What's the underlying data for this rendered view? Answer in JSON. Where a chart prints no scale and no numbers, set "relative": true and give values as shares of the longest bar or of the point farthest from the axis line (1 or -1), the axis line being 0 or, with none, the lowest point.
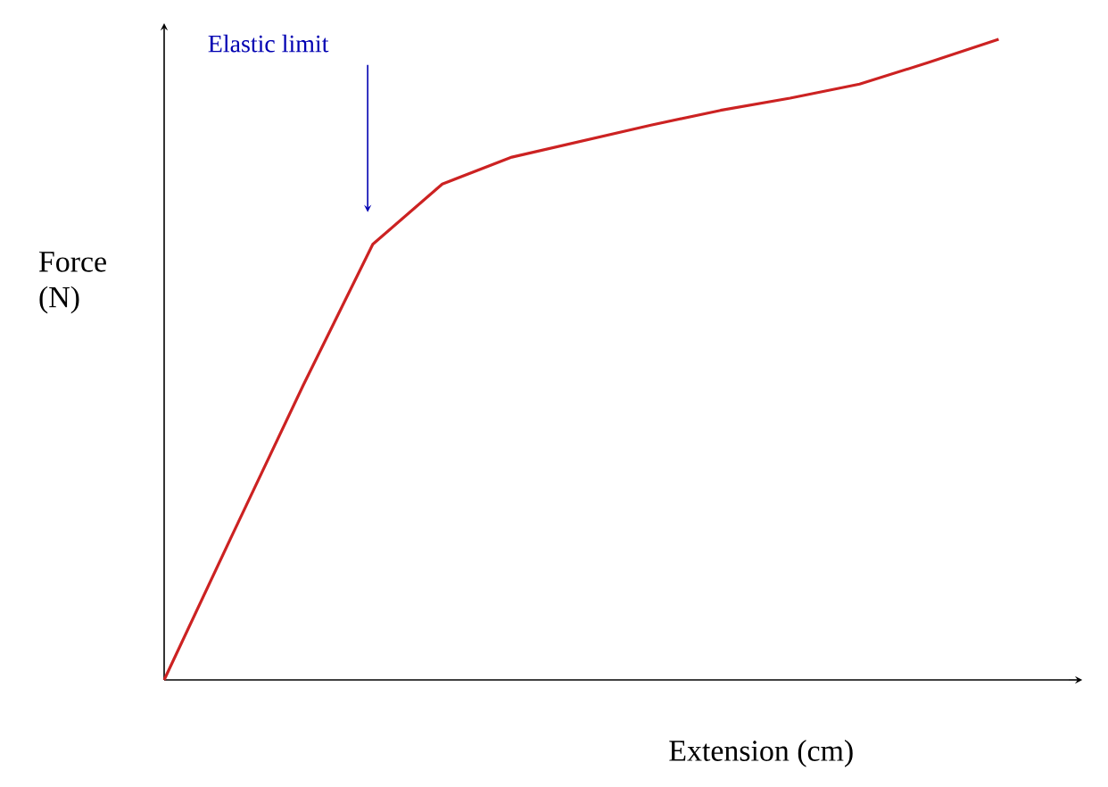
{
  "chart_data": {
    "type": "line",
    "relative": true,
    "tick_labels": false,
    "xlabel": "Extension (cm)",
    "ylabel": "Force (N)",
    "color": "#cc2222",
    "categories": [
      null,
      null,
      null,
      null,
      null,
      null,
      null,
      null,
      null,
      null,
      null,
      null,
      null
    ],
    "values": [
      0,
      0.231,
      0.46,
      0.68,
      0.774,
      0.816,
      0.841,
      0.866,
      0.889,
      0.908,
      0.93,
      0.964,
      1
    ],
    "annotations": [
      "Elastic limit"
    ]
  }
}
